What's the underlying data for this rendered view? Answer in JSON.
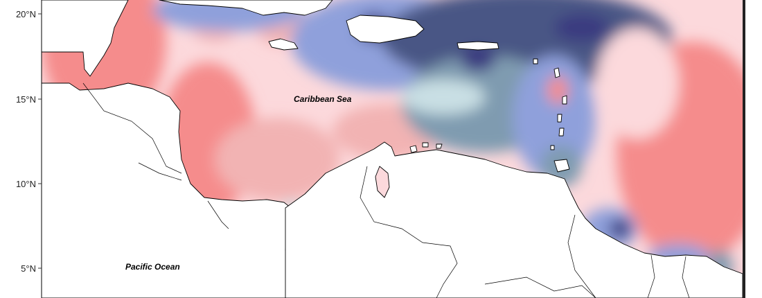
{
  "map": {
    "labels": {
      "caribbean_sea": "Caribbean Sea",
      "pacific_ocean": "Pacific Ocean"
    },
    "y_axis_ticks": [
      "20°N",
      "15°N",
      "10°N",
      "5°N"
    ],
    "colors": {
      "red_strong": "#f58c8c",
      "red_mid": "#f2b3b3",
      "red_light": "#fcd9dc",
      "neutral": "#fdf0f1",
      "blue_pale": "#c9dfe4",
      "blue_grey": "#7f9bb0",
      "blue_mid": "#8fa0db",
      "navy": "#4a5785",
      "indigo": "#3b3b80",
      "land": "#ffffff",
      "frame": "#000000"
    }
  }
}
